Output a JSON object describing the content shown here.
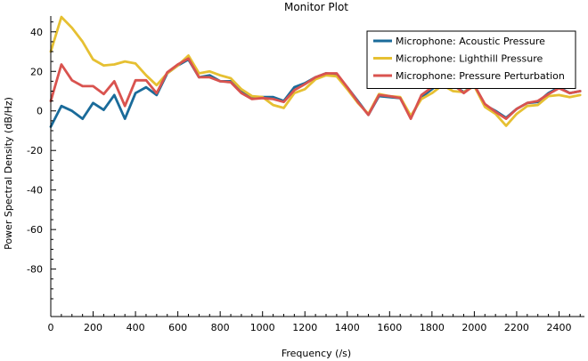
{
  "chart_data": {
    "type": "line",
    "title": "Monitor Plot",
    "xlabel": "Frequency (/s)",
    "ylabel": "Power Spectral Density (dB/Hz)",
    "xlim": [
      0,
      2520
    ],
    "ylim": [
      -104,
      48
    ],
    "xticks": [
      0,
      200,
      400,
      600,
      800,
      1000,
      1200,
      1400,
      1600,
      1800,
      2000,
      2200,
      2400
    ],
    "yticks": [
      -80,
      -60,
      -40,
      -20,
      0,
      20,
      40
    ],
    "legend_position": "top-right",
    "grid": false,
    "series": [
      {
        "name": "Microphone: Acoustic Pressure",
        "color": "#1a6b9a",
        "x": [
          0,
          50,
          100,
          150,
          200,
          250,
          300,
          350,
          400,
          450,
          500,
          550,
          600,
          650,
          700,
          750,
          800,
          850,
          900,
          950,
          1000,
          1050,
          1100,
          1150,
          1200,
          1250,
          1300,
          1350,
          1400,
          1450,
          1500,
          1550,
          1600,
          1650,
          1700,
          1750,
          1800,
          1850,
          1900,
          1950,
          2000,
          2050,
          2100,
          2150,
          2200,
          2250,
          2300,
          2350,
          2400,
          2450,
          2500
        ],
        "y": [
          -8,
          2.5,
          0,
          -4,
          4,
          0.5,
          8,
          -4,
          9,
          12,
          8,
          19,
          23,
          26,
          17,
          18,
          15,
          15,
          10,
          7,
          7,
          7,
          5,
          12,
          14,
          17,
          19,
          18.5,
          12,
          5,
          -2,
          7.5,
          7,
          6.5,
          -3.5,
          7,
          11,
          15,
          13,
          9.5,
          13,
          3,
          0,
          -3.5,
          1,
          4,
          4.5,
          9,
          12,
          9,
          10
        ]
      },
      {
        "name": "Microphone: Lighthill Pressure",
        "color": "#e6c032",
        "x": [
          0,
          50,
          100,
          150,
          200,
          250,
          300,
          350,
          400,
          450,
          500,
          550,
          600,
          650,
          700,
          750,
          800,
          850,
          900,
          950,
          1000,
          1050,
          1100,
          1150,
          1200,
          1250,
          1300,
          1350,
          1400,
          1450,
          1500,
          1550,
          1600,
          1650,
          1700,
          1750,
          1800,
          1850,
          1900,
          1950,
          2000,
          2050,
          2100,
          2150,
          2200,
          2250,
          2300,
          2350,
          2400,
          2450,
          2500
        ],
        "y": [
          30,
          47.5,
          42,
          35,
          26,
          23,
          23.5,
          25,
          24,
          18,
          13,
          19,
          23,
          28,
          19,
          20,
          18,
          16.5,
          11,
          7.5,
          7,
          3,
          1.5,
          9,
          11,
          16,
          18,
          17.5,
          11,
          4,
          -1.5,
          8.5,
          7.5,
          7,
          -2.5,
          6,
          9,
          13,
          10,
          9.5,
          12.5,
          2,
          -1.5,
          -7.5,
          -1.5,
          2.5,
          3,
          7.5,
          8,
          7,
          8
        ]
      },
      {
        "name": "Microphone: Pressure Perturbation",
        "color": "#d9534f",
        "x": [
          0,
          50,
          100,
          150,
          200,
          250,
          300,
          350,
          400,
          450,
          500,
          550,
          600,
          650,
          700,
          750,
          800,
          850,
          900,
          950,
          1000,
          1050,
          1100,
          1150,
          1200,
          1250,
          1300,
          1350,
          1400,
          1450,
          1500,
          1550,
          1600,
          1650,
          1700,
          1750,
          1800,
          1850,
          1900,
          1950,
          2000,
          2050,
          2100,
          2150,
          2200,
          2250,
          2300,
          2350,
          2400,
          2450,
          2500
        ],
        "y": [
          5,
          23.5,
          15.5,
          12.5,
          12.5,
          8.5,
          15,
          2.5,
          15.5,
          15.5,
          9,
          19.5,
          23.5,
          26.5,
          17,
          17,
          15,
          14.5,
          9,
          6,
          6.5,
          6,
          4.5,
          10.5,
          13.5,
          17,
          19,
          19,
          12,
          4.5,
          -2,
          8,
          7.5,
          6.5,
          -4,
          8,
          12,
          15.5,
          13.5,
          9,
          13,
          3.5,
          -0.5,
          -4,
          1,
          4,
          5,
          8.5,
          11.5,
          9,
          10
        ]
      }
    ]
  }
}
